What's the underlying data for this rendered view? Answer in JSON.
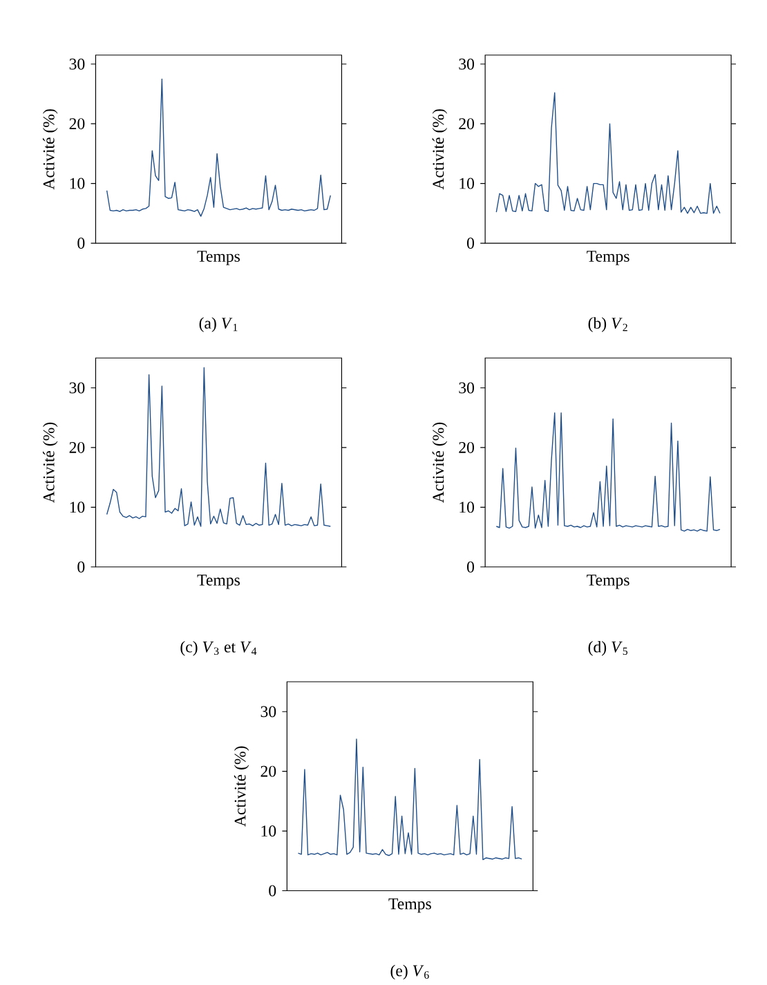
{
  "chart_data": [
    {
      "type": "line",
      "xlabel": "Temps",
      "ylabel": "Activité (%)",
      "color": "#1f4e89",
      "ylim": [
        0,
        31.5
      ],
      "yticks": [
        0,
        10,
        20,
        30
      ],
      "tick_labels": "y",
      "annotations": [
        "(a) *V*$_{1}$"
      ],
      "categories": [
        null,
        null,
        null,
        null,
        null,
        null,
        null,
        null,
        null,
        null,
        null,
        null,
        null,
        null,
        null,
        null,
        null,
        null,
        null,
        null,
        null,
        null,
        null,
        null,
        null,
        null,
        null,
        null,
        null,
        null,
        null,
        null,
        null,
        null,
        null,
        null,
        null,
        null,
        null,
        null,
        null,
        null,
        null,
        null,
        null,
        null,
        null,
        null,
        null,
        null,
        null,
        null,
        null,
        null,
        null,
        null,
        null,
        null,
        null,
        null,
        null,
        null,
        null,
        null,
        null,
        null,
        null,
        null,
        null,
        null
      ],
      "values": [
        8.8,
        5.5,
        5.4,
        5.5,
        5.3,
        5.6,
        5.4,
        5.5,
        5.5,
        5.6,
        5.4,
        5.7,
        5.8,
        6.2,
        15.5,
        11.3,
        10.5,
        27.5,
        7.8,
        7.5,
        7.6,
        10.2,
        5.6,
        5.5,
        5.4,
        5.6,
        5.5,
        5.3,
        5.6,
        4.5,
        5.8,
        8,
        11,
        6,
        15,
        9.5,
        6,
        5.8,
        5.6,
        5.7,
        5.8,
        5.6,
        5.7,
        5.9,
        5.6,
        5.8,
        5.7,
        5.8,
        5.9,
        11.3,
        5.6,
        7,
        9.7,
        5.7,
        5.5,
        5.6,
        5.5,
        5.7,
        5.6,
        5.5,
        5.6,
        5.4,
        5.5,
        5.6,
        5.5,
        5.8,
        11.4,
        5.6,
        5.7,
        8
      ]
    },
    {
      "type": "line",
      "xlabel": "Temps",
      "ylabel": "Activité (%)",
      "color": "#1f4e89",
      "ylim": [
        0,
        31.5
      ],
      "yticks": [
        0,
        10,
        20,
        30
      ],
      "tick_labels": "y",
      "annotations": [
        "(b) *V*$_{2}$"
      ],
      "categories": [
        null,
        null,
        null,
        null,
        null,
        null,
        null,
        null,
        null,
        null,
        null,
        null,
        null,
        null,
        null,
        null,
        null,
        null,
        null,
        null,
        null,
        null,
        null,
        null,
        null,
        null,
        null,
        null,
        null,
        null,
        null,
        null,
        null,
        null,
        null,
        null,
        null,
        null,
        null,
        null,
        null,
        null,
        null,
        null,
        null,
        null,
        null,
        null,
        null,
        null,
        null,
        null,
        null,
        null,
        null,
        null,
        null,
        null,
        null,
        null,
        null,
        null,
        null,
        null,
        null,
        null,
        null,
        null,
        null,
        null
      ],
      "values": [
        5.2,
        8.3,
        8.0,
        5.3,
        8,
        5.4,
        5.3,
        8,
        5.4,
        8.3,
        5.5,
        5.4,
        10,
        9.5,
        9.8,
        5.5,
        5.3,
        19.3,
        25.2,
        9.7,
        8.8,
        5.5,
        9.5,
        5.5,
        5.4,
        7.5,
        5.6,
        5.5,
        9.5,
        5.6,
        10,
        10,
        9.8,
        9.8,
        5.6,
        20,
        8.5,
        7.5,
        10.3,
        5.6,
        9.8,
        5.5,
        5.6,
        9.8,
        5.5,
        5.6,
        10,
        5.5,
        10,
        11.5,
        5.6,
        9.8,
        5.5,
        11.3,
        5.6,
        10,
        15.5,
        5.2,
        6,
        5,
        6,
        5.1,
        6.2,
        5,
        5.1,
        5,
        10,
        5,
        6.2,
        5
      ]
    },
    {
      "type": "line",
      "xlabel": "Temps",
      "ylabel": "Activité (%)",
      "color": "#1f4e89",
      "ylim": [
        0,
        35
      ],
      "yticks": [
        0,
        10,
        20,
        30
      ],
      "tick_labels": "y",
      "annotations": [
        "(c) *V*$_{3}$ et *V*$_{4}$"
      ],
      "categories": [
        null,
        null,
        null,
        null,
        null,
        null,
        null,
        null,
        null,
        null,
        null,
        null,
        null,
        null,
        null,
        null,
        null,
        null,
        null,
        null,
        null,
        null,
        null,
        null,
        null,
        null,
        null,
        null,
        null,
        null,
        null,
        null,
        null,
        null,
        null,
        null,
        null,
        null,
        null,
        null,
        null,
        null,
        null,
        null,
        null,
        null,
        null,
        null,
        null,
        null,
        null,
        null,
        null,
        null,
        null,
        null,
        null,
        null,
        null,
        null,
        null,
        null,
        null,
        null,
        null,
        null,
        null,
        null,
        null,
        null
      ],
      "values": [
        8.8,
        10.7,
        13,
        12.5,
        9.2,
        8.5,
        8.3,
        8.6,
        8.2,
        8.4,
        8.1,
        8.5,
        8.4,
        32.2,
        15.2,
        11.6,
        12.8,
        30.3,
        9.2,
        9.4,
        9.0,
        9.8,
        9.4,
        13.1,
        6.9,
        7.2,
        10.9,
        7.0,
        8.4,
        6.8,
        33.4,
        14.3,
        7.2,
        8.5,
        7.3,
        9.7,
        7.4,
        7.2,
        11.5,
        11.6,
        7.3,
        7.0,
        8.6,
        7.1,
        7.2,
        6.9,
        7.3,
        7.0,
        7.1,
        17.4,
        7.0,
        7.2,
        8.8,
        7.1,
        14,
        7.0,
        7.2,
        6.9,
        7.1,
        7.0,
        6.9,
        7.1,
        7.0,
        8.4,
        6.9,
        7.0,
        13.9,
        7.0,
        6.9,
        6.8
      ]
    },
    {
      "type": "line",
      "xlabel": "Temps",
      "ylabel": "Activité (%)",
      "color": "#1f4e89",
      "ylim": [
        0,
        35
      ],
      "yticks": [
        0,
        10,
        20,
        30
      ],
      "tick_labels": "y",
      "annotations": [
        "(d) *V*$_{5}$"
      ],
      "categories": [
        null,
        null,
        null,
        null,
        null,
        null,
        null,
        null,
        null,
        null,
        null,
        null,
        null,
        null,
        null,
        null,
        null,
        null,
        null,
        null,
        null,
        null,
        null,
        null,
        null,
        null,
        null,
        null,
        null,
        null,
        null,
        null,
        null,
        null,
        null,
        null,
        null,
        null,
        null,
        null,
        null,
        null,
        null,
        null,
        null,
        null,
        null,
        null,
        null,
        null,
        null,
        null,
        null,
        null,
        null,
        null,
        null,
        null,
        null,
        null,
        null,
        null,
        null,
        null,
        null,
        null,
        null,
        null,
        null,
        null
      ],
      "values": [
        6.8,
        6.6,
        16.5,
        6.7,
        6.5,
        6.8,
        19.9,
        7.8,
        6.7,
        6.6,
        6.8,
        13.4,
        6.5,
        8.7,
        6.6,
        14.5,
        6.8,
        17.9,
        25.8,
        7,
        25.8,
        6.9,
        6.8,
        7.0,
        6.7,
        6.8,
        6.6,
        6.9,
        6.7,
        6.8,
        9.1,
        6.7,
        14.3,
        6.8,
        16.9,
        6.9,
        24.8,
        6.8,
        7.0,
        6.7,
        6.9,
        6.8,
        6.7,
        6.9,
        6.8,
        6.7,
        6.9,
        6.8,
        6.7,
        15.2,
        6.8,
        6.9,
        6.7,
        6.8,
        24.1,
        6.9,
        21.1,
        6.2,
        6.0,
        6.3,
        6.1,
        6.2,
        6.0,
        6.3,
        6.1,
        6.0,
        15.1,
        6.2,
        6.1,
        6.3
      ]
    },
    {
      "type": "line",
      "xlabel": "Temps",
      "ylabel": "Activité (%)",
      "color": "#1f4e89",
      "ylim": [
        0,
        35
      ],
      "yticks": [
        0,
        10,
        20,
        30
      ],
      "tick_labels": "y",
      "annotations": [
        "(e) *V*$_{6}$"
      ],
      "categories": [
        null,
        null,
        null,
        null,
        null,
        null,
        null,
        null,
        null,
        null,
        null,
        null,
        null,
        null,
        null,
        null,
        null,
        null,
        null,
        null,
        null,
        null,
        null,
        null,
        null,
        null,
        null,
        null,
        null,
        null,
        null,
        null,
        null,
        null,
        null,
        null,
        null,
        null,
        null,
        null,
        null,
        null,
        null,
        null,
        null,
        null,
        null,
        null,
        null,
        null,
        null,
        null,
        null,
        null,
        null,
        null,
        null,
        null,
        null,
        null,
        null,
        null,
        null,
        null,
        null,
        null,
        null,
        null,
        null,
        null
      ],
      "values": [
        6.3,
        6.1,
        20.3,
        6.0,
        6.2,
        6.1,
        6.3,
        6.0,
        6.2,
        6.4,
        6.1,
        6.2,
        6.0,
        16,
        13.6,
        6.1,
        6.4,
        7.3,
        25.4,
        6.5,
        20.7,
        6.3,
        6.2,
        6.1,
        6.2,
        6.0,
        6.9,
        6.1,
        5.9,
        6.2,
        15.8,
        6.1,
        12.5,
        6.2,
        9.7,
        6.1,
        20.5,
        6.3,
        6.1,
        6.2,
        6.0,
        6.2,
        6.3,
        6.1,
        6.2,
        6.0,
        6.1,
        6.2,
        6.0,
        14.3,
        6.1,
        6.3,
        6.0,
        6.2,
        12.5,
        6.1,
        22,
        5.2,
        5.5,
        5.4,
        5.3,
        5.5,
        5.4,
        5.3,
        5.5,
        5.4,
        14.1,
        5.4,
        5.5,
        5.3
      ]
    }
  ]
}
